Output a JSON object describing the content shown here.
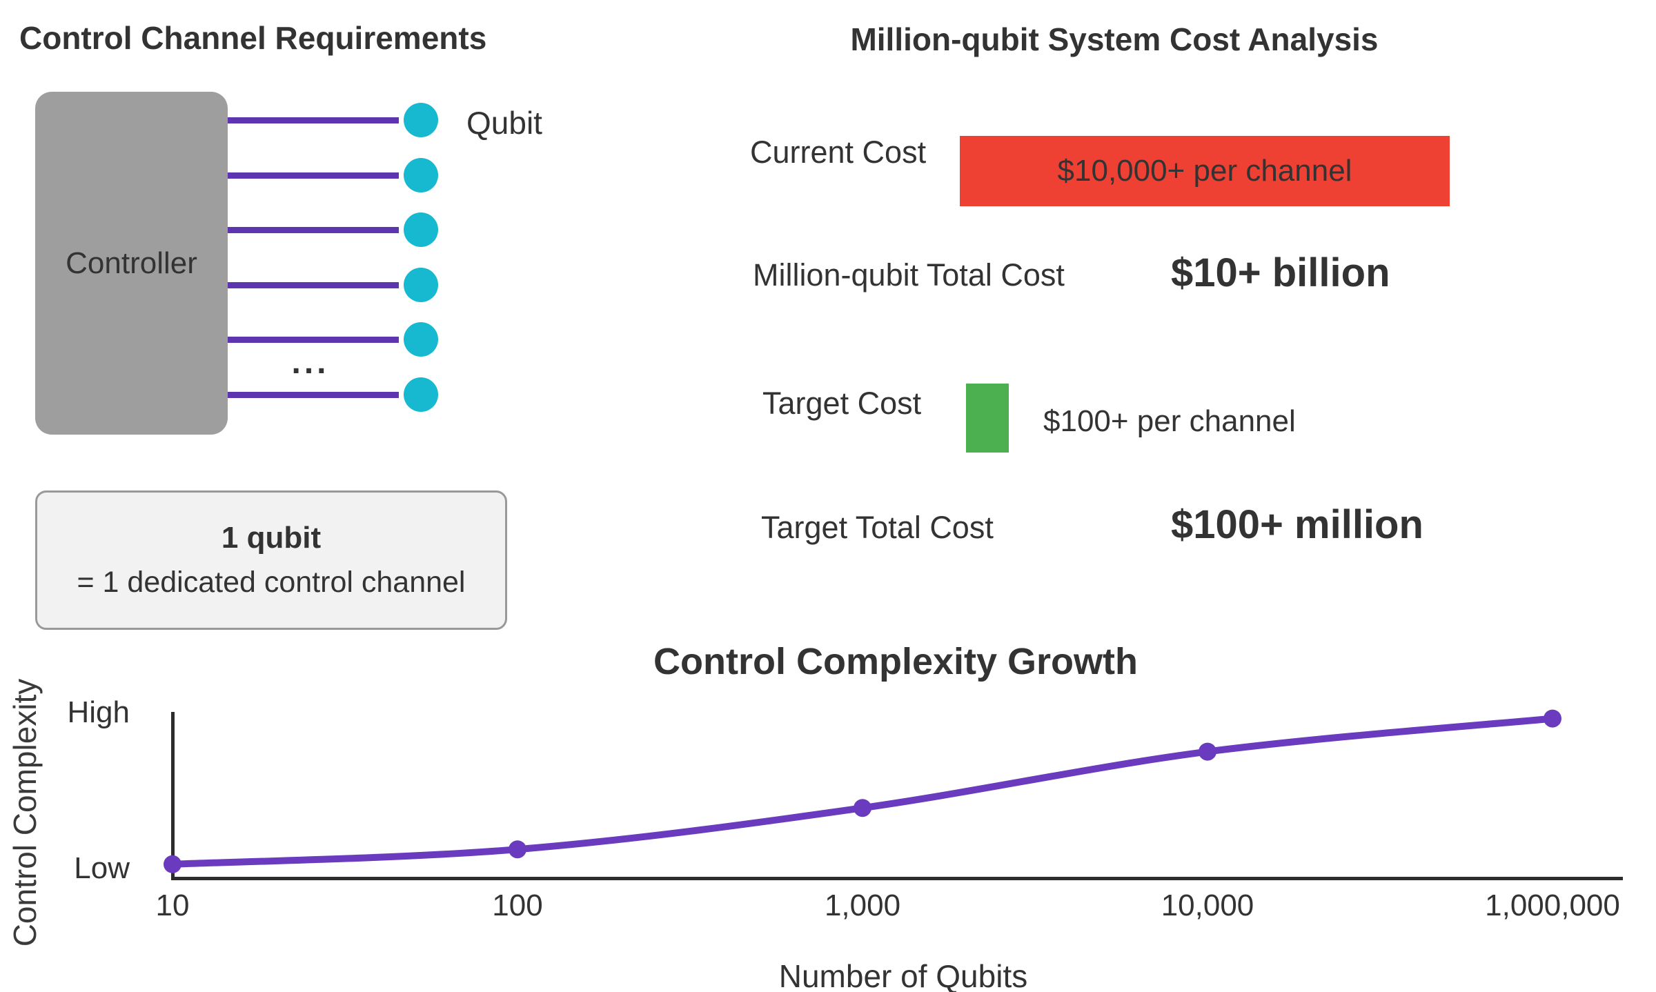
{
  "left_panel": {
    "title": "Control Channel Requirements",
    "controller_label": "Controller",
    "qubit_label": "Qubit",
    "channel_count": 6,
    "ellipsis": "...",
    "note_line1": "1 qubit",
    "note_line2": "= 1 dedicated control channel"
  },
  "right_panel": {
    "title": "Million-qubit System Cost Analysis",
    "rows": [
      {
        "label": "Current Cost",
        "bar_color": "#ee4134",
        "bar_text": "$10,000+ per channel"
      },
      {
        "label": "Million-qubit Total Cost",
        "value": "$10+ billion"
      },
      {
        "label": "Target Cost",
        "bar_color": "#4caf50",
        "bar_text": "$100+ per channel"
      },
      {
        "label": "Target Total Cost",
        "value": "$100+ million"
      }
    ]
  },
  "chart_data": {
    "type": "line",
    "title": "Control Complexity Growth",
    "xlabel": "Number of Qubits",
    "ylabel": "Control Complexity",
    "categories": [
      "10",
      "100",
      "1,000",
      "10,000",
      "1,000,000"
    ],
    "series": [
      {
        "name": "Control complexity",
        "values": [
          0.08,
          0.17,
          0.42,
          0.76,
          0.96
        ]
      }
    ],
    "ylim": [
      0,
      1
    ],
    "y_tick_labels": [
      "Low",
      "High"
    ],
    "x_scale": "logarithmic-categorical",
    "grid": false,
    "legend": false,
    "marker": "circle",
    "line_color": "#6a3abf"
  },
  "colors": {
    "text": "#333333",
    "purple_line": "#5e35b1",
    "chart_purple": "#6a3abf",
    "qubit_cyan": "#16b9d0",
    "controller_gray": "#9e9e9e",
    "bar_red": "#ee4134",
    "bar_green": "#4caf50",
    "axis": "#2d2d2d",
    "note_fill": "#f2f2f2",
    "note_border": "#999999"
  }
}
